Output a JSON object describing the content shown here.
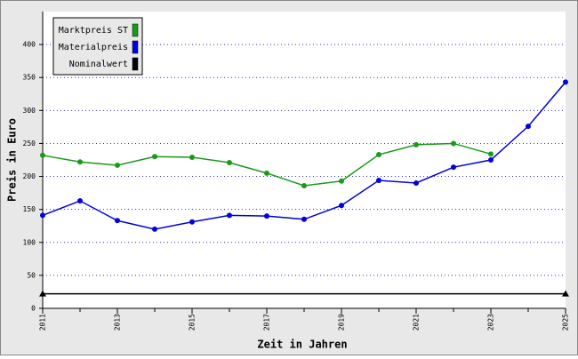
{
  "chart_data": {
    "type": "line",
    "x_label": "Zeit in Jahren",
    "y_label": "Preis in Euro",
    "x": [
      2011,
      2012,
      2013,
      2014,
      2015,
      2016,
      2017,
      2018,
      2019,
      2020,
      2021,
      2022,
      2023,
      2024,
      2025
    ],
    "series": [
      {
        "name": "Marktpreis ST",
        "color": "#1a9a1a",
        "marker": "circle",
        "values": [
          232,
          222,
          217,
          230,
          229,
          221,
          205,
          186,
          193,
          233,
          248,
          250,
          234,
          null,
          null
        ]
      },
      {
        "name": "Materialpreis",
        "color": "#0000e0",
        "marker": "circle",
        "values": [
          141,
          163,
          133,
          120,
          131,
          141,
          140,
          135,
          156,
          194,
          190,
          214,
          225,
          276,
          343
        ]
      },
      {
        "name": "Nominalwert",
        "color": "#000000",
        "marker": "triangle",
        "x": [
          2011,
          2025
        ],
        "values": [
          22,
          22
        ]
      }
    ],
    "xlim": [
      2011,
      2025
    ],
    "xticks": [
      2011,
      2013,
      2015,
      2017,
      2019,
      2021,
      2023,
      2025
    ],
    "ylim": [
      0,
      450
    ],
    "yticks": [
      0,
      50,
      100,
      150,
      200,
      250,
      300,
      350,
      400
    ],
    "grid": true,
    "legend": "top-left"
  }
}
